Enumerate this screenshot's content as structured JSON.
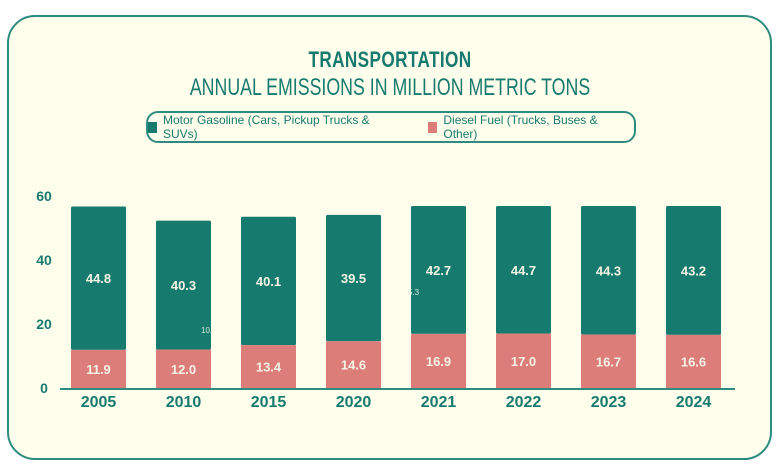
{
  "colors": {
    "accent": "#177a6e",
    "gasoline": "#177a6e",
    "diesel": "#dc7d7a",
    "background": "#fefeec",
    "border": "#2e8b80"
  },
  "chart_data": {
    "type": "bar",
    "stacked": true,
    "title": "TRANSPORTATION",
    "subtitle": "ANNUAL EMISSIONS IN MILLION METRIC TONS",
    "xlabel": "",
    "ylabel": "",
    "ylim": [
      0,
      60
    ],
    "yticks": [
      "0",
      "20",
      "40",
      "60"
    ],
    "grid": false,
    "legend_placement": "top-center",
    "categories": [
      "2005",
      "2010",
      "2015",
      "2020",
      "2021",
      "2022",
      "2023",
      "2024"
    ],
    "series": [
      {
        "name": "Diesel Fuel (Trucks, Buses & Other)",
        "color": "#dc7d7a",
        "values": [
          11.9,
          12.0,
          13.4,
          14.6,
          16.9,
          17.0,
          16.7,
          16.6
        ],
        "labels": [
          "11.9",
          "12.0",
          "13.4",
          "14.6",
          "16.9",
          "17.0",
          "16.7",
          "16.6"
        ]
      },
      {
        "name": "Motor Gasoline (Cars, Pickup Trucks & SUVs)",
        "color": "#177a6e",
        "values": [
          44.8,
          40.3,
          40.1,
          39.5,
          42.7,
          44.7,
          44.3,
          43.2
        ],
        "labels": [
          "44.8",
          "40.3",
          "40.1",
          "39.5",
          "42.7",
          "44.7",
          "44.3",
          "43.2"
        ]
      }
    ],
    "annotations": [
      "10.",
      "5.3"
    ]
  },
  "legend": {
    "items": [
      {
        "label": "Motor Gasoline (Cars, Pickup Trucks & SUVs)",
        "color": "#177a6e"
      },
      {
        "label": "Diesel Fuel (Trucks, Buses & Other)",
        "color": "#dc7d7a"
      }
    ]
  }
}
